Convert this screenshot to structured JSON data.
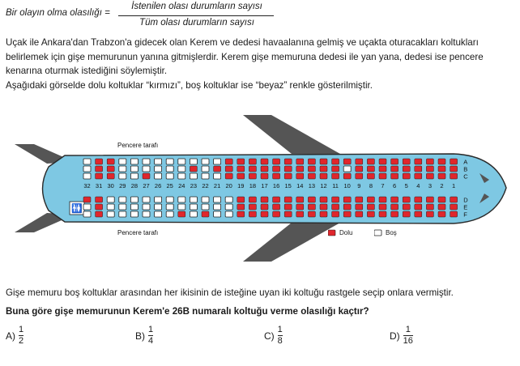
{
  "formula": {
    "lead": "Bir olayın olma olasılığı =",
    "numerator": "İstenilen olası durumların sayısı",
    "denominator": "Tüm olası durumların sayısı"
  },
  "paragraph1": "Uçak ile Ankara'dan Trabzon'a gidecek olan Kerem ve dedesi havaalanına gelmiş ve uçakta oturacakları koltukları belirlemek için gişe memurunun yanına gitmişlerdir. Kerem gişe memuruna dedesi ile yan yana, dedesi ise pencere kenarına oturmak istediğini söylemiştir.",
  "paragraph2": "Aşağıdaki görselde dolu koltuklar “kırmızı”, boş koltuklar ise “beyaz” renkle gösterilmiştir.",
  "plane": {
    "window_top_label": "Pencere tarafı",
    "window_bottom_label": "Pencere tarafı",
    "row_numbers": [
      "32",
      "31",
      "30",
      "29",
      "28",
      "27",
      "26",
      "25",
      "24",
      "23",
      "22",
      "21",
      "20",
      "19",
      "18",
      "17",
      "16",
      "15",
      "14",
      "13",
      "12",
      "11",
      "10",
      "9",
      "8",
      "7",
      "6",
      "5",
      "4",
      "3",
      "2",
      "1"
    ],
    "row_letters_top": [
      "A",
      "B",
      "C"
    ],
    "row_letters_bottom": [
      "D",
      "E",
      "F"
    ],
    "empty_seats": [
      "32A",
      "32B",
      "32C",
      "29A",
      "29B",
      "29C",
      "28A",
      "28B",
      "28C",
      "27A",
      "27B",
      "26A",
      "26B",
      "26C",
      "25A",
      "25B",
      "25C",
      "24A",
      "24B",
      "24C",
      "23A",
      "23C",
      "22A",
      "22B",
      "22C",
      "21A",
      "21C",
      "10B",
      "32E",
      "32F",
      "30D",
      "30E",
      "30F",
      "29D",
      "29E",
      "29F",
      "28D",
      "28E",
      "28F",
      "27D",
      "27E",
      "27F",
      "26D",
      "26E",
      "26F",
      "25D",
      "25E",
      "25F",
      "24D",
      "24E",
      "23D",
      "23E",
      "23F",
      "22D",
      "22E",
      "21D",
      "21E",
      "21F",
      "20D",
      "20E",
      "20F"
    ],
    "colors": {
      "body": "#7ec8e3",
      "body_stroke": "#2a2a2a",
      "wing": "#555555",
      "seat_full": "#e0262c",
      "seat_empty": "#ffffff"
    },
    "legend": {
      "full_label": "Dolu",
      "empty_label": "Boş"
    }
  },
  "question_intro": "Gişe memuru boş koltuklar arasından her ikisinin de isteğine uyan iki koltuğu rastgele seçip onlara vermiştir.",
  "question": "Buna göre gişe memurunun Kerem'e 26B numaralı koltuğu verme olasılığı kaçtır?",
  "options": [
    {
      "letter": "A)",
      "num": "1",
      "den": "2"
    },
    {
      "letter": "B)",
      "num": "1",
      "den": "4"
    },
    {
      "letter": "C)",
      "num": "1",
      "den": "8"
    },
    {
      "letter": "D)",
      "num": "1",
      "den": "16"
    }
  ]
}
